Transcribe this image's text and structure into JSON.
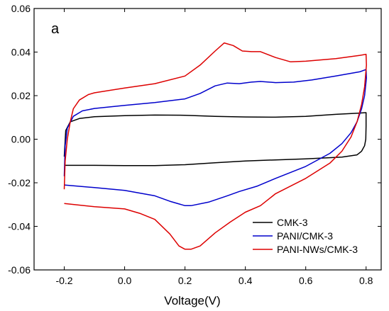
{
  "chart_data": {
    "type": "line",
    "panel_label": "a",
    "title": "",
    "xlabel": "Voltage(V)",
    "ylabel": "",
    "xlim": [
      -0.3,
      0.85
    ],
    "ylim": [
      -0.06,
      0.06
    ],
    "xticks": [
      -0.2,
      0.0,
      0.2,
      0.4,
      0.6,
      0.8
    ],
    "xtick_labels": [
      "-0.2",
      "0.0",
      "0.2",
      "0.4",
      "0.6",
      "0.8"
    ],
    "yticks": [
      -0.06,
      -0.04,
      -0.02,
      0.0,
      0.02,
      0.04,
      0.06
    ],
    "ytick_labels": [
      "-0.06",
      "-0.04",
      "-0.02",
      "0.00",
      "0.02",
      "0.04",
      "0.06"
    ],
    "grid": false,
    "legend_position": "bottom-right",
    "series": [
      {
        "name": "CMK-3",
        "color": "#000000",
        "points": [
          [
            -0.2,
            -0.008
          ],
          [
            -0.195,
            0.004
          ],
          [
            -0.18,
            0.008
          ],
          [
            -0.15,
            0.0095
          ],
          [
            -0.1,
            0.0103
          ],
          [
            0.0,
            0.0108
          ],
          [
            0.1,
            0.0111
          ],
          [
            0.2,
            0.011
          ],
          [
            0.3,
            0.0105
          ],
          [
            0.4,
            0.0102
          ],
          [
            0.5,
            0.0101
          ],
          [
            0.6,
            0.0105
          ],
          [
            0.7,
            0.0114
          ],
          [
            0.78,
            0.012
          ],
          [
            0.8,
            0.0122
          ],
          [
            0.8,
            0.006
          ],
          [
            0.799,
            0.0
          ],
          [
            0.795,
            -0.003
          ],
          [
            0.785,
            -0.0055
          ],
          [
            0.77,
            -0.0072
          ],
          [
            0.72,
            -0.0082
          ],
          [
            0.6,
            -0.009
          ],
          [
            0.5,
            -0.0095
          ],
          [
            0.4,
            -0.01
          ],
          [
            0.3,
            -0.0108
          ],
          [
            0.2,
            -0.0117
          ],
          [
            0.1,
            -0.0121
          ],
          [
            0.0,
            -0.0121
          ],
          [
            -0.1,
            -0.012
          ],
          [
            -0.2,
            -0.012
          ]
        ]
      },
      {
        "name": "PANI/CMK-3",
        "color": "#0000cc",
        "points": [
          [
            -0.2,
            -0.017
          ],
          [
            -0.197,
            -0.003
          ],
          [
            -0.19,
            0.005
          ],
          [
            -0.17,
            0.0105
          ],
          [
            -0.14,
            0.013
          ],
          [
            -0.1,
            0.0141
          ],
          [
            0.0,
            0.0155
          ],
          [
            0.1,
            0.0168
          ],
          [
            0.2,
            0.0185
          ],
          [
            0.25,
            0.021
          ],
          [
            0.3,
            0.0245
          ],
          [
            0.34,
            0.0258
          ],
          [
            0.38,
            0.0255
          ],
          [
            0.42,
            0.0262
          ],
          [
            0.45,
            0.0265
          ],
          [
            0.5,
            0.026
          ],
          [
            0.56,
            0.0262
          ],
          [
            0.62,
            0.0272
          ],
          [
            0.7,
            0.029
          ],
          [
            0.78,
            0.031
          ],
          [
            0.8,
            0.032
          ],
          [
            0.801,
            0.028
          ],
          [
            0.795,
            0.02
          ],
          [
            0.785,
            0.014
          ],
          [
            0.77,
            0.008
          ],
          [
            0.75,
            0.003
          ],
          [
            0.72,
            -0.002
          ],
          [
            0.68,
            -0.0065
          ],
          [
            0.6,
            -0.0125
          ],
          [
            0.5,
            -0.018
          ],
          [
            0.44,
            -0.0215
          ],
          [
            0.38,
            -0.024
          ],
          [
            0.34,
            -0.026
          ],
          [
            0.28,
            -0.0288
          ],
          [
            0.22,
            -0.0305
          ],
          [
            0.2,
            -0.0305
          ],
          [
            0.15,
            -0.0285
          ],
          [
            0.1,
            -0.026
          ],
          [
            0.0,
            -0.0235
          ],
          [
            -0.1,
            -0.0222
          ],
          [
            -0.2,
            -0.021
          ]
        ]
      },
      {
        "name": "PANI-NWs/CMK-3",
        "color": "#dd0000",
        "points": [
          [
            -0.2,
            -0.023
          ],
          [
            -0.197,
            -0.01
          ],
          [
            -0.19,
            0.0
          ],
          [
            -0.18,
            0.008
          ],
          [
            -0.17,
            0.014
          ],
          [
            -0.15,
            0.018
          ],
          [
            -0.12,
            0.0205
          ],
          [
            -0.1,
            0.0213
          ],
          [
            0.0,
            0.0235
          ],
          [
            0.1,
            0.0255
          ],
          [
            0.2,
            0.029
          ],
          [
            0.25,
            0.034
          ],
          [
            0.3,
            0.0405
          ],
          [
            0.33,
            0.0442
          ],
          [
            0.36,
            0.043
          ],
          [
            0.39,
            0.0405
          ],
          [
            0.42,
            0.0402
          ],
          [
            0.45,
            0.0402
          ],
          [
            0.5,
            0.0375
          ],
          [
            0.55,
            0.0355
          ],
          [
            0.6,
            0.0358
          ],
          [
            0.7,
            0.037
          ],
          [
            0.78,
            0.0385
          ],
          [
            0.8,
            0.039
          ],
          [
            0.801,
            0.034
          ],
          [
            0.795,
            0.024
          ],
          [
            0.785,
            0.016
          ],
          [
            0.77,
            0.008
          ],
          [
            0.75,
            0.001
          ],
          [
            0.72,
            -0.0055
          ],
          [
            0.68,
            -0.011
          ],
          [
            0.6,
            -0.018
          ],
          [
            0.5,
            -0.025
          ],
          [
            0.45,
            -0.0305
          ],
          [
            0.4,
            -0.0335
          ],
          [
            0.35,
            -0.038
          ],
          [
            0.3,
            -0.043
          ],
          [
            0.25,
            -0.049
          ],
          [
            0.22,
            -0.0505
          ],
          [
            0.2,
            -0.0505
          ],
          [
            0.18,
            -0.049
          ],
          [
            0.15,
            -0.0435
          ],
          [
            0.1,
            -0.0368
          ],
          [
            0.05,
            -0.034
          ],
          [
            0.0,
            -0.032
          ],
          [
            -0.1,
            -0.031
          ],
          [
            -0.2,
            -0.0295
          ]
        ]
      }
    ]
  }
}
